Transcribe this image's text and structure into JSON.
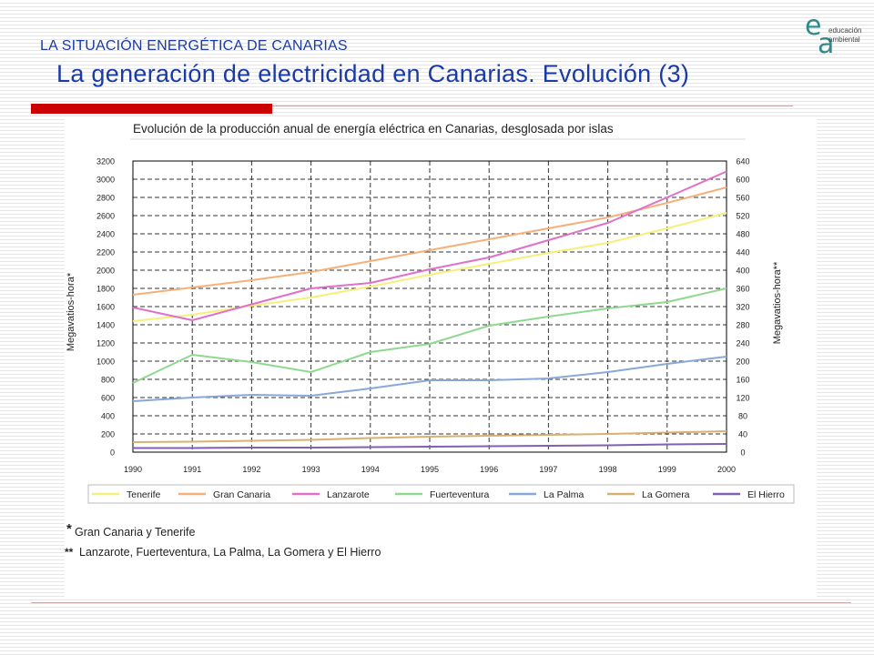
{
  "slide": {
    "subtitle": "LA SITUACIÓN ENERGÉTICA DE CANARIAS",
    "title": "La generación de electricidad en Canarias. Evolución (3)",
    "logo": {
      "letters": [
        "e",
        "a"
      ],
      "line1": "educación",
      "line2": "ambiental"
    },
    "accent_color": "#cc0000",
    "title_color": "#1a3aa6"
  },
  "chart_data": {
    "type": "line",
    "title": "Evolución de la producción anual de energía eléctrica en Canarias, desglosada por islas",
    "x": [
      "1990",
      "1991",
      "1992",
      "1993",
      "1994",
      "1995",
      "1996",
      "1997",
      "1998",
      "1999",
      "2000"
    ],
    "ylabel": "Megavatios-hora*",
    "y2label": "Megavatios-hora**",
    "ylim": [
      0,
      3200
    ],
    "y2lim": [
      0,
      640
    ],
    "yticks": [
      "0",
      "200",
      "400",
      "600",
      "800",
      "1000",
      "1200",
      "1400",
      "1600",
      "1800",
      "2000",
      "2200",
      "2400",
      "2600",
      "2800",
      "3000",
      "3200"
    ],
    "y2ticks": [
      "0",
      "40",
      "80",
      "120",
      "160",
      "200",
      "240",
      "280",
      "320",
      "360",
      "400",
      "440",
      "480",
      "520",
      "560",
      "600",
      "640"
    ],
    "grid": true,
    "legend_position": "bottom",
    "series": [
      {
        "name": "Tenerife",
        "axis": "left",
        "color": "#f5f07a",
        "values": [
          1440,
          1510,
          1610,
          1700,
          1820,
          1950,
          2070,
          2190,
          2300,
          2460,
          2630
        ]
      },
      {
        "name": "Gran Canaria",
        "axis": "left",
        "color": "#f5b07a",
        "values": [
          1730,
          1810,
          1890,
          1980,
          2100,
          2220,
          2340,
          2460,
          2580,
          2740,
          2910
        ]
      },
      {
        "name": "Lanzarote",
        "axis": "right",
        "color": "#e070c8",
        "values": [
          318,
          290,
          325,
          360,
          372,
          402,
          428,
          466,
          504,
          560,
          617
        ]
      },
      {
        "name": "Fuerteventura",
        "axis": "right",
        "color": "#90d890",
        "values": [
          152,
          214,
          198,
          176,
          220,
          238,
          278,
          298,
          316,
          330,
          360
        ]
      },
      {
        "name": "La Palma",
        "axis": "right",
        "color": "#88a8d8",
        "values": [
          112,
          120,
          126,
          124,
          140,
          158,
          158,
          162,
          176,
          194,
          210
        ]
      },
      {
        "name": "La Gomera",
        "axis": "right",
        "color": "#d8b070",
        "values": [
          22,
          23,
          25,
          27,
          31,
          34,
          36,
          38,
          40,
          43,
          46
        ]
      },
      {
        "name": "El Hierro",
        "axis": "right",
        "color": "#8060b0",
        "values": [
          9,
          9,
          10,
          10,
          11,
          12,
          13,
          14,
          15,
          17,
          18
        ]
      }
    ],
    "notes": [
      {
        "mark": "*",
        "text": "Gran Canaria y Tenerife"
      },
      {
        "mark": "**",
        "text": "Lanzarote, Fuerteventura, La Palma, La Gomera y El Hierro"
      }
    ]
  }
}
